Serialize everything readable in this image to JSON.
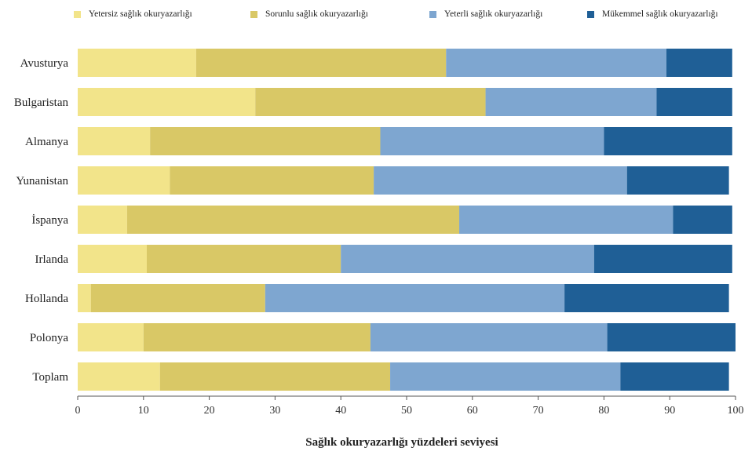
{
  "chart_data": {
    "type": "bar",
    "orientation": "horizontal",
    "stacked": true,
    "categories": [
      "Avusturya",
      "Bulgaristan",
      "Almanya",
      "Yunanistan",
      "İspanya",
      "Irlanda",
      "Hollanda",
      "Polonya",
      "Toplam"
    ],
    "series": [
      {
        "name": "Yetersiz sağlık okuryazarlığı",
        "color": "#f2e48a",
        "values": [
          18,
          27,
          11,
          14,
          7.5,
          10.5,
          2,
          10,
          12.5
        ]
      },
      {
        "name": "Sorunlu sağlık okuryazarlığı",
        "color": "#d9c866",
        "values": [
          38,
          35,
          35,
          31,
          50.5,
          29.5,
          26.5,
          34.5,
          35
        ]
      },
      {
        "name": "Yeterli sağlık okuryazarlığı",
        "color": "#7ea6d0",
        "values": [
          33.5,
          26,
          34,
          38.5,
          32.5,
          38.5,
          45.5,
          36,
          35
        ]
      },
      {
        "name": "Mükemmel sağlık okuryazarlığı",
        "color": "#1f5f96",
        "values": [
          10,
          11.5,
          19.5,
          15.5,
          9,
          21,
          25,
          19.5,
          16.5
        ]
      }
    ],
    "xlabel": "Sağlık okuryazarlığı yüzdeleri seviyesi",
    "ylabel": "",
    "xlim": [
      0,
      100
    ],
    "xticks": [
      0,
      10,
      20,
      30,
      40,
      50,
      60,
      70,
      80,
      90,
      100
    ],
    "grid": false,
    "legend_position": "top"
  }
}
